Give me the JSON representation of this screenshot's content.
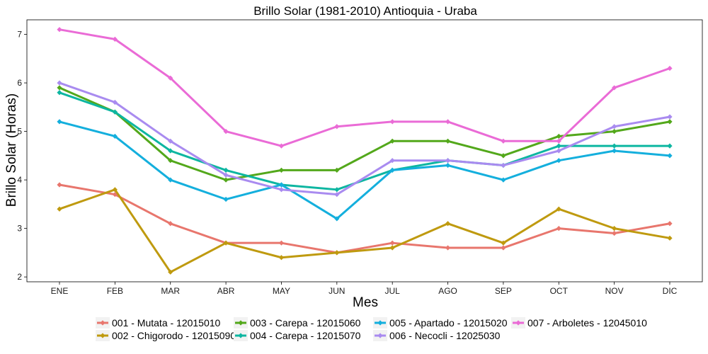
{
  "chart_data": {
    "type": "line",
    "title": "Brillo Solar (1981-2010)  Antioquia - Uraba",
    "xlabel": "Mes",
    "ylabel": "Brillo Solar (Horas)",
    "categories": [
      "ENE",
      "FEB",
      "MAR",
      "ABR",
      "MAY",
      "JUN",
      "JUL",
      "AGO",
      "SEP",
      "OCT",
      "NOV",
      "DIC"
    ],
    "ylim": [
      1.9,
      7.3
    ],
    "yticks": [
      2,
      3,
      4,
      5,
      6,
      7
    ],
    "grid": false,
    "legend_position": "bottom",
    "series": [
      {
        "name": "001 - Mutata - 12015010",
        "color": "#E8766D",
        "values": [
          3.9,
          3.7,
          3.1,
          2.7,
          2.7,
          2.5,
          2.7,
          2.6,
          2.6,
          3.0,
          2.9,
          3.1
        ]
      },
      {
        "name": "002 - Chigorodo - 12015090",
        "color": "#BF9A0F",
        "values": [
          3.4,
          3.8,
          2.1,
          2.7,
          2.4,
          2.5,
          2.6,
          3.1,
          2.7,
          3.4,
          3.0,
          2.8
        ]
      },
      {
        "name": "003 - Carepa - 12015060",
        "color": "#53A81B",
        "values": [
          5.9,
          5.4,
          4.4,
          4.0,
          4.2,
          4.2,
          4.8,
          4.8,
          4.5,
          4.9,
          5.0,
          5.2
        ]
      },
      {
        "name": "004 - Carepa - 12015070",
        "color": "#0DB6A1",
        "values": [
          5.8,
          5.4,
          4.6,
          4.2,
          3.9,
          3.8,
          4.2,
          4.4,
          4.3,
          4.7,
          4.7,
          4.7
        ]
      },
      {
        "name": "005 - Apartado - 12015020",
        "color": "#14AFDD",
        "values": [
          5.2,
          4.9,
          4.0,
          3.6,
          3.9,
          3.2,
          4.2,
          4.3,
          4.0,
          4.4,
          4.6,
          4.5
        ]
      },
      {
        "name": "006 - Necocli - 12025030",
        "color": "#A98BF0",
        "values": [
          6.0,
          5.6,
          4.8,
          4.1,
          3.8,
          3.7,
          4.4,
          4.4,
          4.3,
          4.6,
          5.1,
          5.3
        ]
      },
      {
        "name": "007 - Arboletes - 12045010",
        "color": "#EA6BD6",
        "values": [
          7.1,
          6.9,
          6.1,
          5.0,
          4.7,
          5.1,
          5.2,
          5.2,
          4.8,
          4.8,
          5.9,
          6.3
        ]
      }
    ]
  }
}
